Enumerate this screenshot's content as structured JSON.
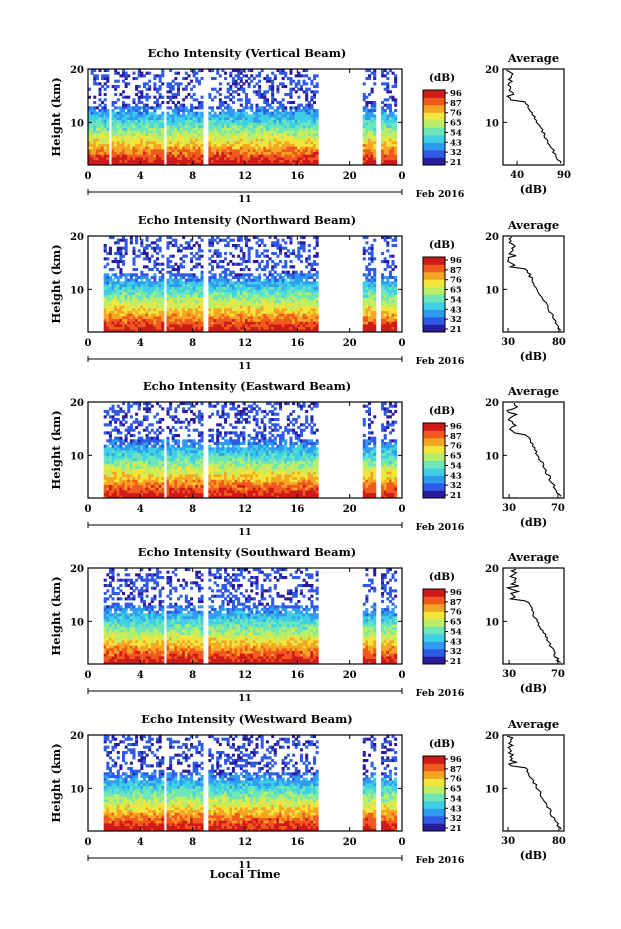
{
  "figure": {
    "xlabel": "Local Time",
    "day_label": "11",
    "month_label": "Feb 2016",
    "ylabel": "Height (km)",
    "unit_label": "(dB)",
    "avg_title": "Average",
    "avg_xlabel": "(dB)"
  },
  "chart_data": [
    {
      "type": "heatmap",
      "title": "Echo Intensity (Vertical Beam)",
      "x_ticks": [
        "0",
        "4",
        "8",
        "12",
        "16",
        "20",
        "0"
      ],
      "y_ticks": [
        "20",
        "10"
      ],
      "colorbar_ticks": [
        "96",
        "87",
        "76",
        "65",
        "54",
        "43",
        "32",
        "21"
      ],
      "xlim": [
        0,
        24
      ],
      "ylim": [
        2,
        20
      ],
      "clim": [
        21,
        96
      ],
      "data_gaps_hours": [
        [
          1.6,
          1.8
        ],
        [
          5.8,
          6.1
        ],
        [
          8.9,
          9.3
        ],
        [
          17.6,
          21.1
        ],
        [
          22.0,
          22.4
        ],
        [
          23.6,
          24.0
        ]
      ],
      "average": {
        "x_ticks": [
          "40",
          "90"
        ],
        "xlim": [
          25,
          90
        ],
        "title": "Average",
        "xlabel": "(dB)"
      }
    },
    {
      "type": "heatmap",
      "title": "Echo Intensity (Northward Beam)",
      "x_ticks": [
        "0",
        "4",
        "8",
        "12",
        "16",
        "20",
        "0"
      ],
      "y_ticks": [
        "20",
        "10"
      ],
      "colorbar_ticks": [
        "96",
        "87",
        "76",
        "65",
        "54",
        "43",
        "32",
        "21"
      ],
      "xlim": [
        0,
        24
      ],
      "ylim": [
        2,
        20
      ],
      "clim": [
        21,
        96
      ],
      "data_gaps_hours": [
        [
          0,
          1.2
        ],
        [
          5.8,
          6.1
        ],
        [
          8.9,
          9.3
        ],
        [
          17.6,
          21.1
        ],
        [
          22.0,
          22.4
        ],
        [
          23.6,
          24.0
        ]
      ],
      "average": {
        "x_ticks": [
          "30",
          "80"
        ],
        "xlim": [
          25,
          85
        ],
        "title": "Average",
        "xlabel": "(dB)"
      }
    },
    {
      "type": "heatmap",
      "title": "Echo Intensity (Eastward Beam)",
      "x_ticks": [
        "0",
        "4",
        "8",
        "12",
        "16",
        "20",
        "0"
      ],
      "y_ticks": [
        "20",
        "10"
      ],
      "colorbar_ticks": [
        "96",
        "87",
        "76",
        "65",
        "54",
        "43",
        "32",
        "21"
      ],
      "xlim": [
        0,
        24
      ],
      "ylim": [
        2,
        20
      ],
      "clim": [
        21,
        96
      ],
      "data_gaps_hours": [
        [
          0,
          1.2
        ],
        [
          5.8,
          6.1
        ],
        [
          8.9,
          9.3
        ],
        [
          17.6,
          21.1
        ],
        [
          22.0,
          22.4
        ],
        [
          23.6,
          24.0
        ]
      ],
      "average": {
        "x_ticks": [
          "30",
          "70"
        ],
        "xlim": [
          25,
          75
        ],
        "title": "Average",
        "xlabel": "(dB)"
      }
    },
    {
      "type": "heatmap",
      "title": "Echo Intensity (Southward Beam)",
      "x_ticks": [
        "0",
        "4",
        "8",
        "12",
        "16",
        "20",
        "0"
      ],
      "y_ticks": [
        "20",
        "10"
      ],
      "colorbar_ticks": [
        "96",
        "87",
        "76",
        "65",
        "54",
        "43",
        "32",
        "21"
      ],
      "xlim": [
        0,
        24
      ],
      "ylim": [
        2,
        20
      ],
      "clim": [
        21,
        96
      ],
      "data_gaps_hours": [
        [
          0,
          1.2
        ],
        [
          5.8,
          6.1
        ],
        [
          8.9,
          9.3
        ],
        [
          17.6,
          21.1
        ],
        [
          22.0,
          22.4
        ],
        [
          23.6,
          24.0
        ]
      ],
      "average": {
        "x_ticks": [
          "30",
          "70"
        ],
        "xlim": [
          25,
          75
        ],
        "title": "Average",
        "xlabel": "(dB)"
      }
    },
    {
      "type": "heatmap",
      "title": "Echo Intensity (Westward Beam)",
      "x_ticks": [
        "0",
        "4",
        "8",
        "12",
        "16",
        "20",
        "0"
      ],
      "y_ticks": [
        "20",
        "10"
      ],
      "colorbar_ticks": [
        "96",
        "87",
        "76",
        "65",
        "54",
        "43",
        "32",
        "21"
      ],
      "xlim": [
        0,
        24
      ],
      "ylim": [
        2,
        20
      ],
      "clim": [
        21,
        96
      ],
      "data_gaps_hours": [
        [
          0,
          1.2
        ],
        [
          5.8,
          6.1
        ],
        [
          8.9,
          9.3
        ],
        [
          17.6,
          21.1
        ],
        [
          22.0,
          22.4
        ],
        [
          23.6,
          24.0
        ]
      ],
      "average": {
        "x_ticks": [
          "30",
          "80"
        ],
        "xlim": [
          25,
          85
        ],
        "title": "Average",
        "xlabel": "(dB)"
      }
    }
  ],
  "colormap": [
    "#2a1a9c",
    "#2f5ae6",
    "#2f9cf0",
    "#3fd0e6",
    "#6fe6b8",
    "#b8ee6a",
    "#f2e63c",
    "#f5a524",
    "#f05a1e",
    "#d01a1a"
  ]
}
